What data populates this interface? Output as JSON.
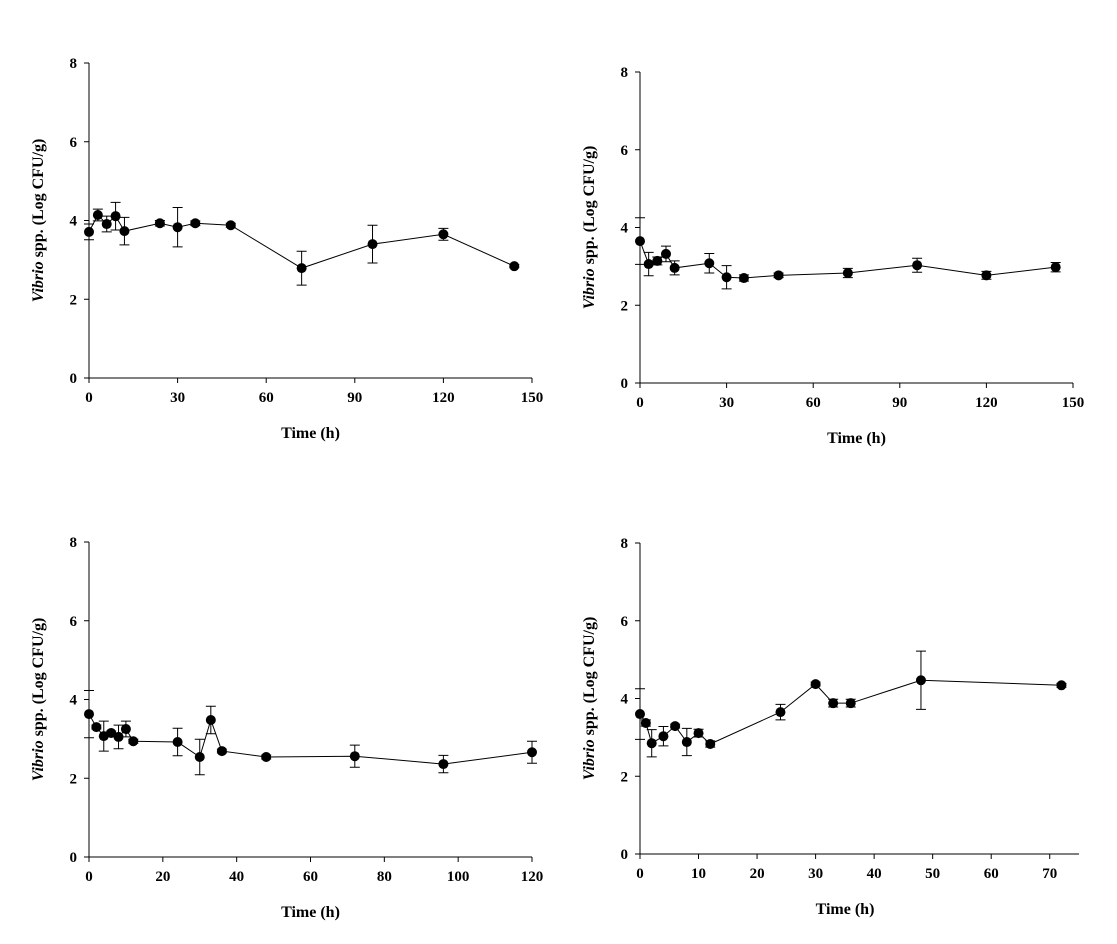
{
  "chart_data": [
    {
      "type": "line",
      "x_label": "Time (h)",
      "y_label_species": "Vibrio",
      "y_label_unit": "spp. (Log CFU/g)",
      "x": [
        0,
        3,
        6,
        9,
        12,
        24,
        30,
        36,
        48,
        72,
        96,
        120,
        144
      ],
      "series": [
        {
          "color": "#000000",
          "values": [
            3.71,
            4.14,
            3.91,
            4.11,
            3.73,
            3.93,
            3.83,
            3.93,
            3.88,
            2.79,
            3.4,
            3.65,
            2.84
          ],
          "errors": [
            0.2,
            0.15,
            0.2,
            0.35,
            0.35,
            0.07,
            0.5,
            0.06,
            0.05,
            0.43,
            0.48,
            0.15,
            0.04
          ]
        }
      ],
      "xlim": [
        0,
        150
      ],
      "xticks": [
        0,
        30,
        60,
        90,
        120,
        150
      ],
      "ylim": [
        0,
        8
      ],
      "yticks": [
        0,
        2,
        4,
        6,
        8
      ]
    },
    {
      "type": "line",
      "x_label": "Time (h)",
      "y_label_species": "Vibrio",
      "y_label_unit": "spp. (Log CFU/g)",
      "x": [
        0,
        3,
        6,
        9,
        12,
        24,
        30,
        36,
        48,
        72,
        96,
        120,
        144
      ],
      "series": [
        {
          "color": "#000000",
          "values": [
            3.65,
            3.06,
            3.14,
            3.32,
            2.96,
            3.08,
            2.72,
            2.7,
            2.77,
            2.83,
            3.03,
            2.77,
            2.98
          ],
          "errors": [
            0.6,
            0.3,
            0.1,
            0.2,
            0.18,
            0.25,
            0.3,
            0.08,
            0.06,
            0.12,
            0.18,
            0.1,
            0.12
          ]
        }
      ],
      "xlim": [
        0,
        150
      ],
      "xticks": [
        0,
        30,
        60,
        90,
        120,
        150
      ],
      "ylim": [
        0,
        8
      ],
      "yticks": [
        0,
        2,
        4,
        6,
        8
      ]
    },
    {
      "type": "line",
      "x_label": "Time (h)",
      "y_label_species": "Vibrio",
      "y_label_unit": "spp. (Log CFU/g)",
      "x": [
        0,
        2,
        4,
        6,
        8,
        10,
        12,
        24,
        30,
        33,
        36,
        48,
        72,
        96,
        120
      ],
      "series": [
        {
          "color": "#000000",
          "values": [
            3.63,
            3.3,
            3.07,
            3.15,
            3.05,
            3.25,
            2.94,
            2.92,
            2.54,
            3.48,
            2.69,
            2.54,
            2.56,
            2.36,
            2.66
          ],
          "errors": [
            0.6,
            0.05,
            0.38,
            0.05,
            0.3,
            0.2,
            0.05,
            0.35,
            0.45,
            0.35,
            0.05,
            0.05,
            0.28,
            0.22,
            0.28
          ]
        }
      ],
      "xlim": [
        0,
        120
      ],
      "xticks": [
        0,
        20,
        40,
        60,
        80,
        100,
        120
      ],
      "ylim": [
        0,
        8
      ],
      "yticks": [
        0,
        2,
        4,
        6,
        8
      ]
    },
    {
      "type": "line",
      "x_label": "Time (h)",
      "y_label_species": "Vibrio",
      "y_label_unit": "spp. (Log CFU/g)",
      "x": [
        0,
        1,
        2,
        4,
        6,
        8,
        10,
        12,
        24,
        30,
        33,
        36,
        48,
        72
      ],
      "series": [
        {
          "color": "#000000",
          "values": [
            3.6,
            3.37,
            2.85,
            3.03,
            3.29,
            2.88,
            3.11,
            2.83,
            3.65,
            4.37,
            3.88,
            3.88,
            4.47,
            4.34
          ],
          "errors": [
            0.65,
            0.08,
            0.35,
            0.25,
            0.05,
            0.35,
            0.1,
            0.08,
            0.2,
            0.05,
            0.1,
            0.1,
            0.75,
            0.05
          ]
        }
      ],
      "xlim": [
        0,
        75
      ],
      "xticks": [
        0,
        10,
        20,
        30,
        40,
        50,
        60,
        70
      ],
      "ylim": [
        0,
        8
      ],
      "yticks": [
        0,
        2,
        4,
        6,
        8
      ]
    }
  ]
}
